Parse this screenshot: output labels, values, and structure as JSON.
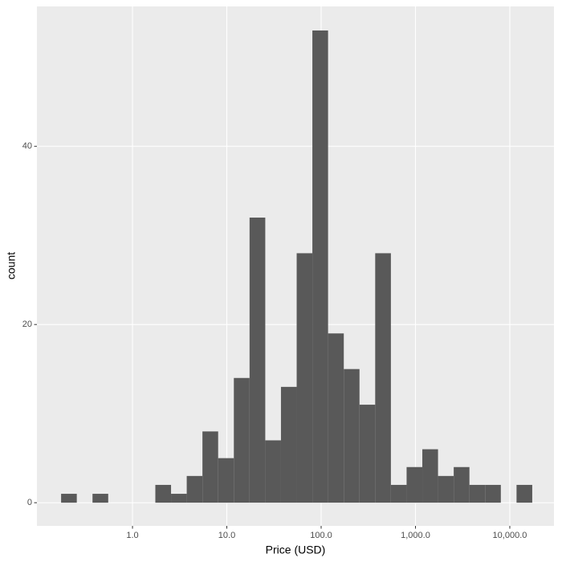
{
  "chart_data": {
    "type": "histogram",
    "x_label": "Price (USD)",
    "y_label": "count",
    "bins": [
      0.175,
      0.2567,
      0.3767,
      0.5527,
      0.811,
      1.19,
      1.746,
      2.562,
      3.758,
      5.514,
      8.091,
      11.87,
      17.42,
      25.56,
      37.5,
      55.02,
      80.72,
      118.4,
      173.8,
      255.0,
      374.1,
      548.9,
      805.4,
      1182,
      1734,
      2544,
      3733,
      5477,
      8035,
      11790,
      17298
    ],
    "counts": [
      1,
      0,
      1,
      0,
      0,
      0,
      2,
      1,
      3,
      8,
      5,
      14,
      32,
      7,
      13,
      28,
      53,
      19,
      15,
      11,
      28,
      2,
      4,
      6,
      3,
      4,
      2,
      2,
      0,
      2
    ],
    "color": "#595959",
    "x_log": true,
    "xlim": [
      0.097,
      29400
    ],
    "xticks": [
      {
        "value": 1,
        "label": "1.0"
      },
      {
        "value": 10,
        "label": "10.0"
      },
      {
        "value": 100,
        "label": "100.0"
      },
      {
        "value": 1000,
        "label": "1,000.0"
      },
      {
        "value": 10000,
        "label": "10,000.0"
      }
    ],
    "ylim": [
      -2.6,
      55.7
    ],
    "yticks": [
      0,
      20,
      40
    ],
    "grid": true
  }
}
